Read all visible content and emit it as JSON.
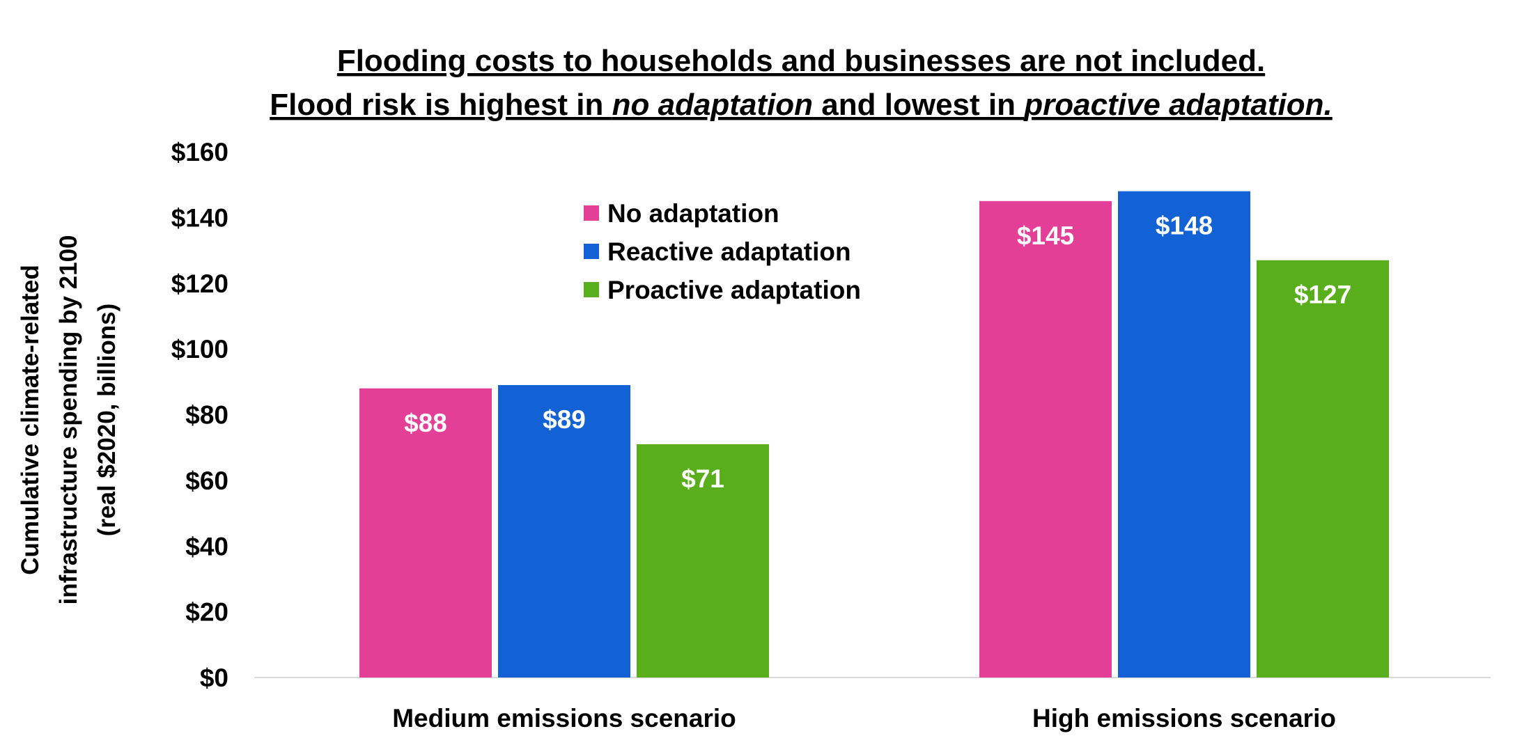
{
  "chart_data": {
    "type": "bar",
    "title_line1": "Flooding costs to households and businesses are not included.",
    "title_line2_parts": [
      {
        "text": "Flood risk is highest in ",
        "italic": false
      },
      {
        "text": "no adaptation",
        "italic": true
      },
      {
        "text": " and lowest in ",
        "italic": false
      },
      {
        "text": "proactive adaptation.",
        "italic": true
      }
    ],
    "ylabel_lines": [
      "Cumulative  climate-related",
      "infrastructure spending by 2100",
      "(real $2020, billions)"
    ],
    "xlabel": "",
    "categories": [
      "Medium emissions scenario",
      "High emissions scenario"
    ],
    "series": [
      {
        "name": "No adaptation",
        "color": "#E33F96",
        "values": [
          88,
          145
        ],
        "labels": [
          "$88",
          "$145"
        ]
      },
      {
        "name": "Reactive adaptation",
        "color": "#1262D6",
        "values": [
          89,
          148
        ],
        "labels": [
          "$89",
          "$148"
        ]
      },
      {
        "name": "Proactive adaptation",
        "color": "#59AE1C",
        "values": [
          71,
          127
        ],
        "labels": [
          "$71",
          "$127"
        ]
      }
    ],
    "ylim": [
      0,
      160
    ],
    "yticks": [
      0,
      20,
      40,
      60,
      80,
      100,
      120,
      140,
      160
    ],
    "ytick_labels": [
      "$0",
      "$20",
      "$40",
      "$60",
      "$80",
      "$100",
      "$120",
      "$140",
      "$160"
    ],
    "grid": false,
    "legend_position": "top-center"
  }
}
